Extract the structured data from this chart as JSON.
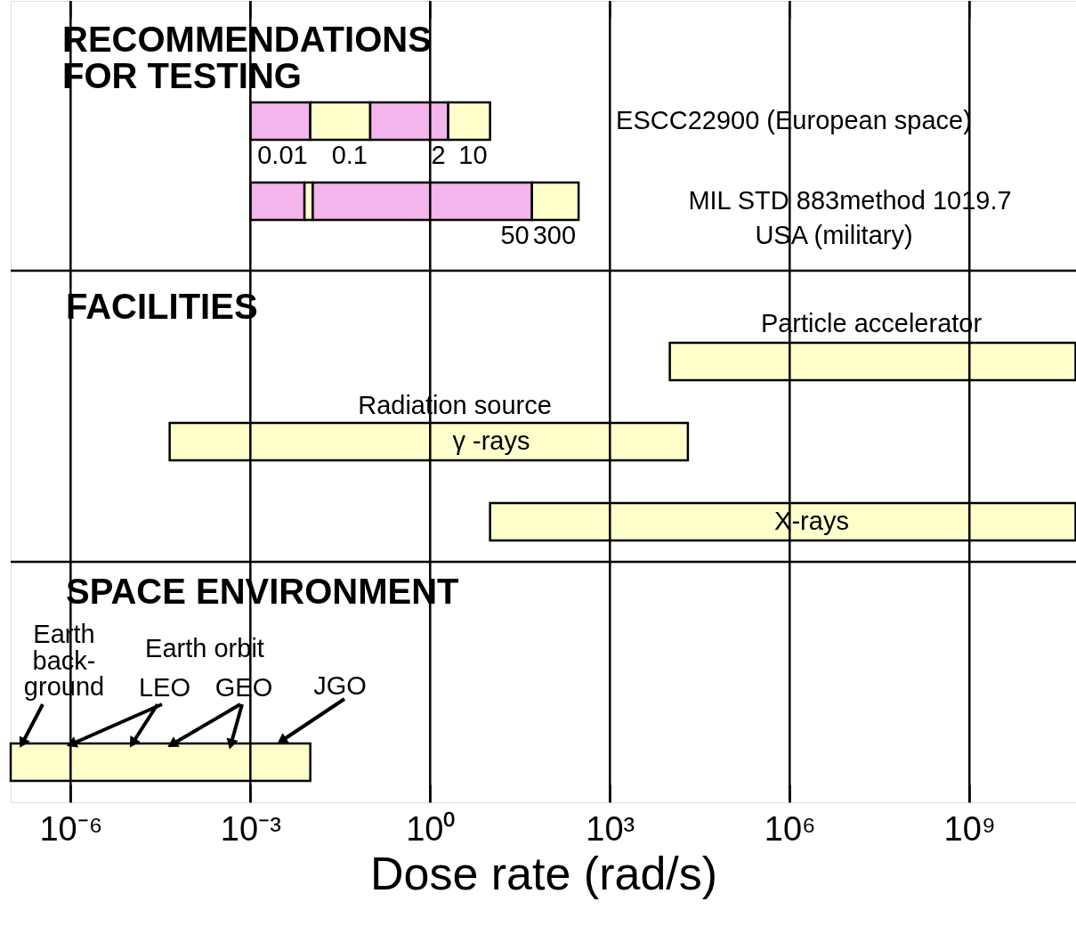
{
  "chart_data": {
    "type": "bar",
    "orientation": "horizontal",
    "log": "x",
    "grid": "x",
    "xlabel": "Dose rate (rad/s)",
    "categories": [
      null,
      null,
      null,
      null,
      null,
      null,
      null,
      null,
      null,
      null
    ],
    "series": [
      {
        "color": "#f4b4ec",
        "base": [
          null,
          0.001,
          0.001,
          null,
          null,
          null,
          null,
          null,
          null,
          null
        ],
        "values": [
          null,
          0.009,
          0.007,
          null,
          null,
          null,
          null,
          null,
          null,
          null
        ],
        "value_labels": [
          null,
          "0.01",
          null,
          null,
          null,
          null,
          null,
          null,
          null,
          null
        ]
      },
      {
        "color": "#ffffcc",
        "base": [
          null,
          0.01,
          0.008,
          null,
          10000,
          4.5e-05,
          10,
          null,
          null,
          1e-07
        ],
        "values": [
          null,
          0.09,
          0.003,
          null,
          59000000000.0,
          20000,
          59000000000.0,
          null,
          null,
          0.01
        ],
        "value_labels": [
          null,
          "0.1",
          null,
          null,
          null,
          null,
          null,
          null,
          null,
          null
        ]
      },
      {
        "color": "#f4b4ec",
        "base": [
          null,
          0.1,
          0.011,
          null,
          null,
          null,
          null,
          null,
          null,
          null
        ],
        "values": [
          null,
          1.9,
          49.989,
          null,
          null,
          null,
          null,
          null,
          null,
          null
        ],
        "value_labels": [
          null,
          "2",
          "50",
          null,
          null,
          null,
          null,
          null,
          null,
          null
        ]
      },
      {
        "color": "#ffffcc",
        "base": [
          null,
          2,
          50,
          null,
          null,
          null,
          null,
          null,
          null,
          null
        ],
        "values": [
          null,
          8,
          250,
          null,
          null,
          null,
          null,
          null,
          null,
          null
        ],
        "value_labels": [
          null,
          "10",
          "300",
          null,
          null,
          null,
          null,
          null,
          null,
          null
        ]
      }
    ],
    "xlim": [
      1e-07,
      60000000000.0
    ],
    "xticks": [
      {
        "value": 1e-06,
        "label": "10⁻⁶"
      },
      {
        "value": 0.001,
        "label": "10⁻³"
      },
      {
        "value": 1,
        "label": "10⁰"
      },
      {
        "value": 1000,
        "label": "10³"
      },
      {
        "value": 1000000.0,
        "label": "10⁶"
      },
      {
        "value": 1000000000.0,
        "label": "10⁹"
      }
    ],
    "annotations": [
      "RECOMMENDATIONS\nFOR TESTING",
      "FACILITIES",
      "SPACE ENVIRONMENT",
      "ESCC22900 (European space)",
      "MIL STD 883method 1019.7",
      "USA (military)",
      "Particle accelerator",
      "Radiation source",
      "γ -rays",
      "X-rays",
      "Earth\nback-\nground",
      "Earth orbit",
      "LEO",
      "GEO",
      "JGO"
    ]
  }
}
